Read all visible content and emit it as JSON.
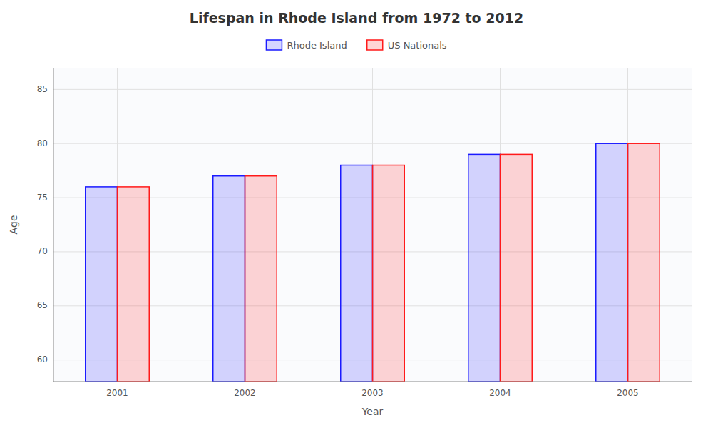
{
  "chart_data": {
    "type": "bar",
    "title": "Lifespan in Rhode Island from 1972 to 2012",
    "xlabel": "Year",
    "ylabel": "Age",
    "categories": [
      "2001",
      "2002",
      "2003",
      "2004",
      "2005"
    ],
    "series": [
      {
        "name": "Rhode Island",
        "color": "#1a1aff",
        "values": [
          76,
          77,
          78,
          79,
          80
        ]
      },
      {
        "name": "US Nationals",
        "color": "#ff1a1a",
        "values": [
          76,
          77,
          78,
          79,
          80
        ]
      }
    ],
    "ylim": [
      58,
      87
    ],
    "yticks": [
      60,
      65,
      70,
      75,
      80,
      85
    ],
    "grid": true,
    "legend": "top"
  }
}
